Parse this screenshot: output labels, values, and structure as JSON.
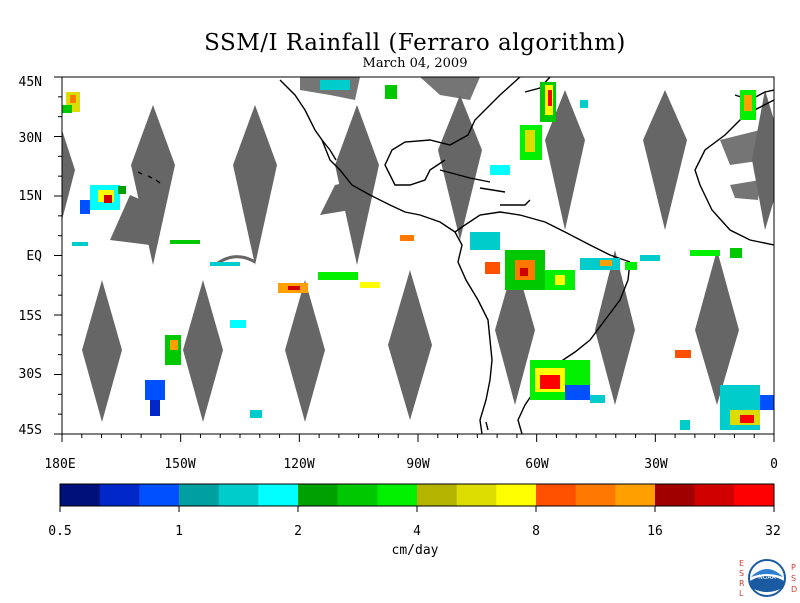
{
  "title": "SSM/I Rainfall (Ferraro algorithm)",
  "subtitle": "March 04, 2009",
  "lat_labels": [
    "45N",
    "30N",
    "15N",
    "EQ",
    "15S",
    "30S",
    "45S"
  ],
  "lon_labels": [
    "180E",
    "150W",
    "120W",
    "90W",
    "60W",
    "30W",
    "0"
  ],
  "colorbar": {
    "colors": [
      "#00107a",
      "#0028c8",
      "#0050ff",
      "#00a0a0",
      "#00cccc",
      "#00ffff",
      "#00a000",
      "#00c800",
      "#00f000",
      "#b4b400",
      "#dcdc00",
      "#ffff00",
      "#ff5000",
      "#ff7800",
      "#ffa000",
      "#a00000",
      "#d00000",
      "#ff0000"
    ],
    "tick_labels": [
      "0.5",
      "1",
      "2",
      "4",
      "8",
      "16",
      "32"
    ]
  },
  "units": "cm/day",
  "swath_gap_color": "#666666",
  "logo": {
    "letters_left": [
      "E",
      "S",
      "R",
      "L"
    ],
    "letters_right": [
      "P",
      "S",
      "D"
    ],
    "text": "NOAA"
  }
}
